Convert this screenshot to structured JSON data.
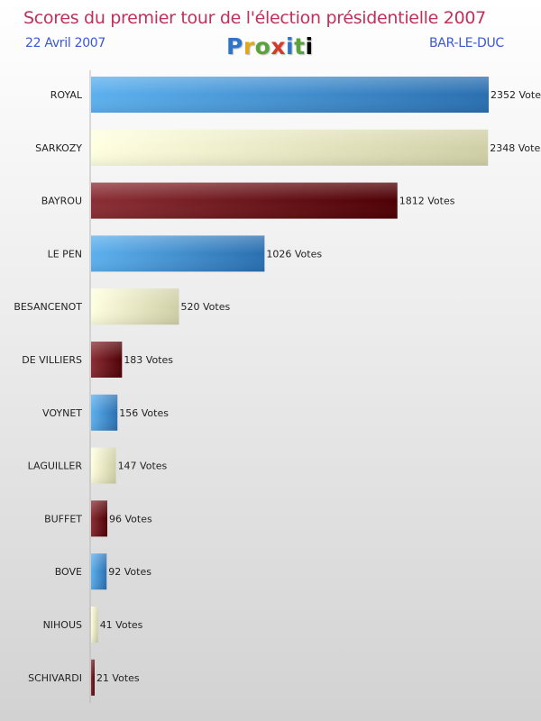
{
  "header": {
    "title": "Scores du premier tour de l'élection présidentielle 2007",
    "date": "22 Avril 2007",
    "city": "BAR-LE-DUC",
    "logo": [
      "P",
      "r",
      "o",
      "x",
      "i",
      "t",
      "i"
    ]
  },
  "colors": {
    "title": "#c0305a",
    "subtitle": "#3a57d8",
    "blue": "#3a8fd8",
    "cream": "#f4f4c8",
    "maroon": "#6e1015"
  },
  "chart_data": {
    "type": "bar",
    "orientation": "horizontal",
    "value_suffix": " Votes",
    "categories": [
      "ROYAL",
      "SARKOZY",
      "BAYROU",
      "LE PEN",
      "BESANCENOT",
      "DE VILLIERS",
      "VOYNET",
      "LAGUILLER",
      "BUFFET",
      "BOVE",
      "NIHOUS",
      "SCHIVARDI"
    ],
    "values": [
      2352,
      2348,
      1812,
      1026,
      520,
      183,
      156,
      147,
      96,
      92,
      41,
      21
    ],
    "bar_colors": [
      "blue",
      "cream",
      "maroon",
      "blue",
      "cream",
      "maroon",
      "blue",
      "cream",
      "maroon",
      "blue",
      "cream",
      "maroon"
    ],
    "xlim": [
      0,
      2352
    ],
    "grid": false
  }
}
